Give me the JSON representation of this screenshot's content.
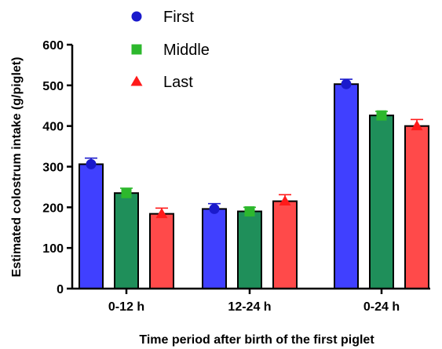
{
  "chart_data": {
    "type": "bar",
    "categories": [
      "0-12 h",
      "12-24 h",
      "0-24 h"
    ],
    "series": [
      {
        "name": "First",
        "color": "#4040ff",
        "marker_color": "#1a1acc",
        "marker": "circle",
        "values": [
          306,
          196,
          503
        ],
        "errors": [
          15,
          13,
          12
        ]
      },
      {
        "name": "Middle",
        "color": "#1f8f5a",
        "marker_color": "#2db82d",
        "marker": "square",
        "values": [
          235,
          190,
          426
        ],
        "errors": [
          12,
          10,
          10
        ]
      },
      {
        "name": "Last",
        "color": "#ff4a4a",
        "marker_color": "#ff1a1a",
        "marker": "triangle",
        "values": [
          184,
          215,
          400
        ],
        "errors": [
          14,
          16,
          16
        ]
      }
    ],
    "ylabel": "Estimated colostrum intake (g/piglet)",
    "xlabel": "Time period after birth of the first piglet",
    "ylim": [
      0,
      600
    ],
    "yticks": [
      0,
      100,
      200,
      300,
      400,
      500,
      600
    ],
    "legend": "top",
    "grid": false
  }
}
